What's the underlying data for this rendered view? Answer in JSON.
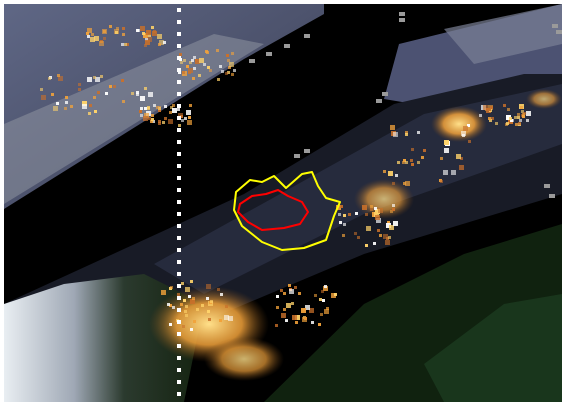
{
  "image": {
    "kind": "satellite-night-scene",
    "palette": {
      "background": "#000000",
      "frame_border": "#ffffff",
      "haze_gray": "#7b7f8f",
      "haze_blue": "#5f6785",
      "city_orange": "#f2a23a",
      "city_yellow": "#ffd36a",
      "vegetation_green": "#1b3a1f",
      "snow_white": "#e9eef2",
      "contour_outer": "#ffff00",
      "contour_inner": "#ff0000",
      "marker_dots": "#ffffff",
      "swath_edge": "#9a9a9a"
    },
    "contours": [
      {
        "name": "outer-contour",
        "color": "#ffff00"
      },
      {
        "name": "inner-contour",
        "color": "#ff0000"
      }
    ],
    "marker_line": {
      "name": "vertical-dotted-marker",
      "color": "#ffffff"
    }
  }
}
